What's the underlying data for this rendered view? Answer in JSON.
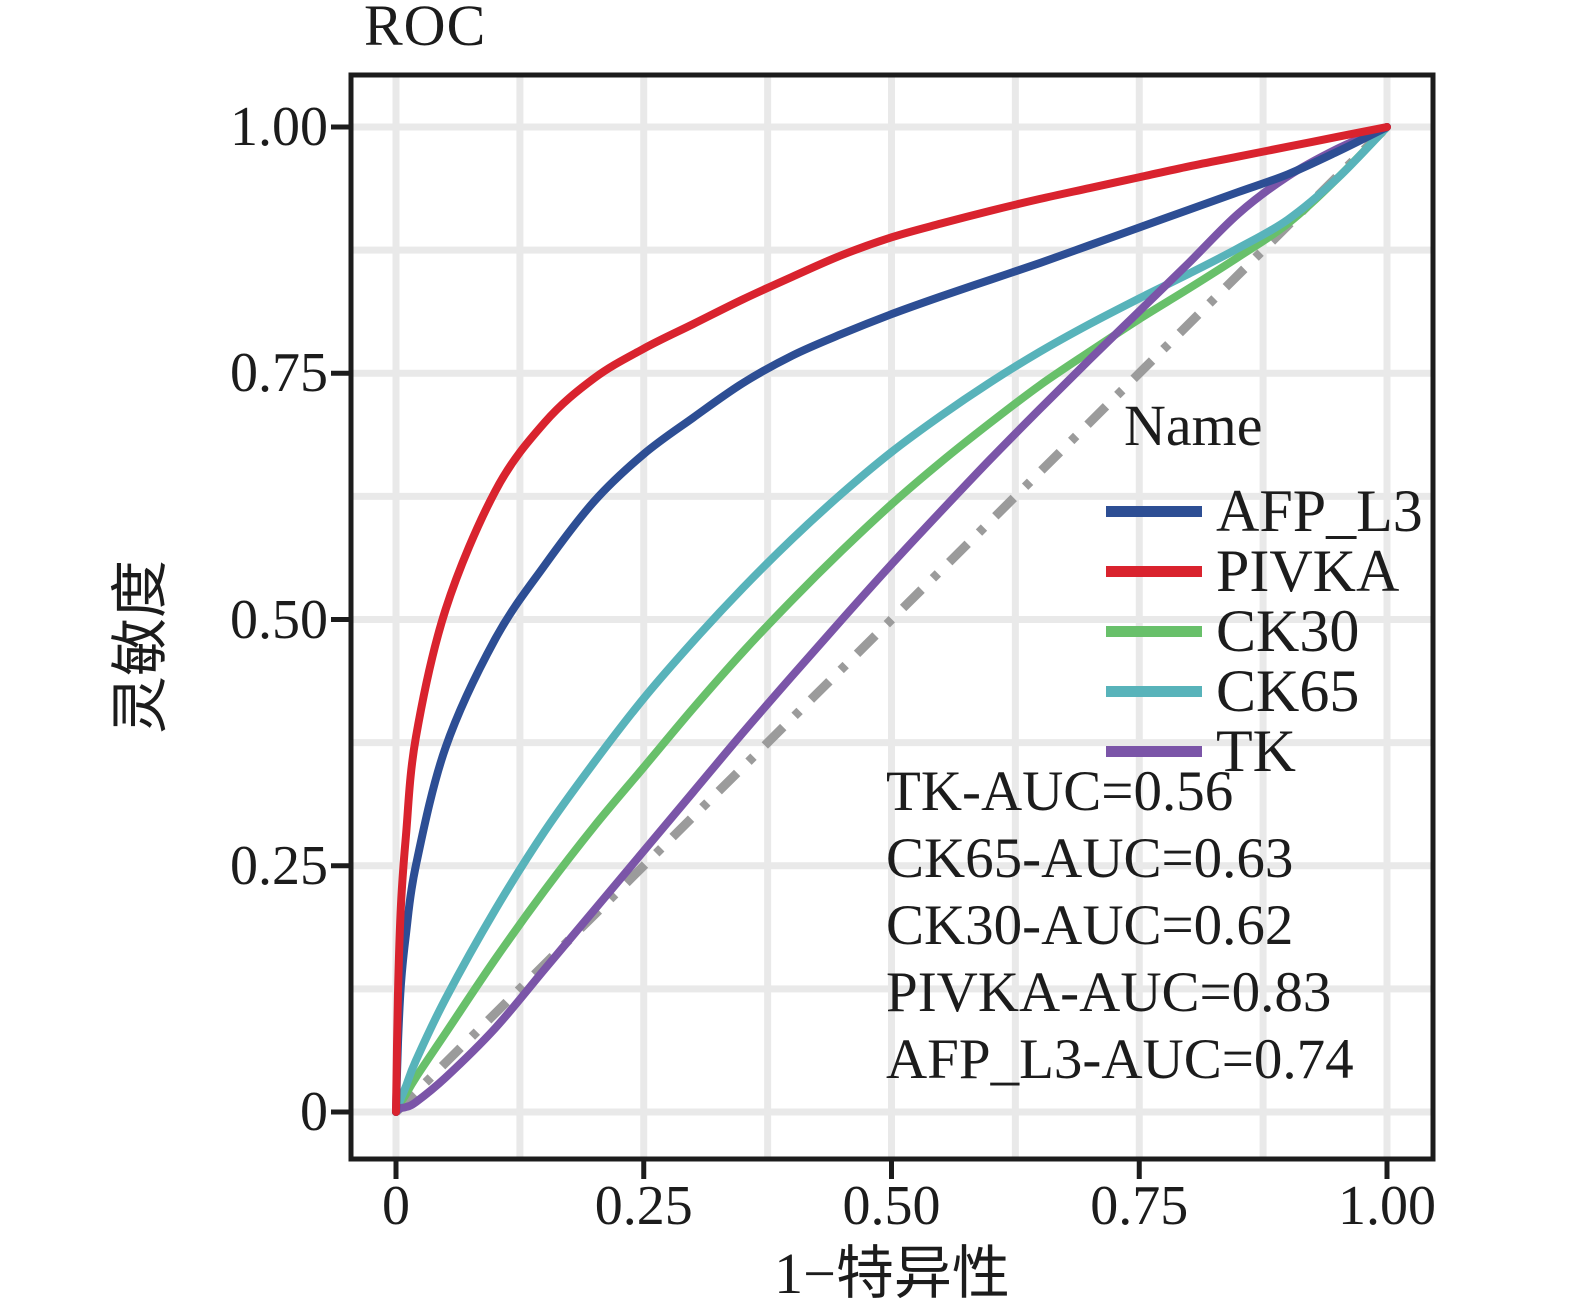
{
  "title": "ROC",
  "axes": {
    "x_label": "1−特异性",
    "y_label": "灵敏度",
    "x_ticks": [
      {
        "v": 0,
        "label": "0"
      },
      {
        "v": 0.25,
        "label": "0.25"
      },
      {
        "v": 0.5,
        "label": "0.50"
      },
      {
        "v": 0.75,
        "label": "0.75"
      },
      {
        "v": 1,
        "label": "1.00"
      }
    ],
    "y_ticks": [
      {
        "v": 0,
        "label": "0"
      },
      {
        "v": 0.25,
        "label": "0.25"
      },
      {
        "v": 0.5,
        "label": "0.50"
      },
      {
        "v": 0.75,
        "label": "0.75"
      },
      {
        "v": 1,
        "label": "1.00"
      }
    ]
  },
  "legend": {
    "title": "Name",
    "position": "inside-upper-right"
  },
  "colors": {
    "axis": "#1c1c1c",
    "grid": "#e9e9e9",
    "text": "#1c1c1c",
    "reference": "#9b9b9b"
  },
  "chart_data": {
    "type": "line",
    "title": "ROC",
    "xlabel": "1−特异性",
    "ylabel": "灵敏度",
    "xlim": [
      0,
      1
    ],
    "ylim": [
      0,
      1
    ],
    "grid": true,
    "grid_step": 0.125,
    "legend_position": "inside-right",
    "x": [
      0,
      0.002,
      0.005,
      0.01,
      0.02,
      0.05,
      0.1,
      0.15,
      0.2,
      0.25,
      0.3,
      0.35,
      0.4,
      0.45,
      0.5,
      0.55,
      0.6,
      0.65,
      0.7,
      0.75,
      0.8,
      0.85,
      0.9,
      0.95,
      1
    ],
    "series": [
      {
        "name": "AFP_L3",
        "color": "#2d4e94",
        "auc": 0.74,
        "y": [
          0,
          0.07,
          0.13,
          0.18,
          0.25,
          0.37,
          0.48,
          0.555,
          0.62,
          0.668,
          0.705,
          0.74,
          0.768,
          0.79,
          0.81,
          0.828,
          0.845,
          0.862,
          0.88,
          0.898,
          0.916,
          0.934,
          0.952,
          0.975,
          1
        ]
      },
      {
        "name": "PIVKA",
        "color": "#d9232e",
        "auc": 0.83,
        "y": [
          0,
          0.12,
          0.21,
          0.28,
          0.38,
          0.51,
          0.63,
          0.7,
          0.745,
          0.775,
          0.8,
          0.825,
          0.848,
          0.87,
          0.888,
          0.902,
          0.915,
          0.927,
          0.938,
          0.949,
          0.96,
          0.97,
          0.98,
          0.99,
          1
        ]
      },
      {
        "name": "CK30",
        "color": "#68c06a",
        "auc": 0.62,
        "y": [
          0,
          0.004,
          0.01,
          0.018,
          0.035,
          0.08,
          0.155,
          0.225,
          0.29,
          0.35,
          0.41,
          0.467,
          0.52,
          0.57,
          0.617,
          0.66,
          0.7,
          0.738,
          0.772,
          0.805,
          0.836,
          0.868,
          0.902,
          0.948,
          1
        ]
      },
      {
        "name": "CK65",
        "color": "#58b3ba",
        "auc": 0.63,
        "y": [
          0,
          0.006,
          0.014,
          0.026,
          0.052,
          0.115,
          0.205,
          0.285,
          0.355,
          0.42,
          0.478,
          0.532,
          0.582,
          0.628,
          0.67,
          0.707,
          0.741,
          0.772,
          0.8,
          0.826,
          0.851,
          0.877,
          0.906,
          0.948,
          1
        ]
      },
      {
        "name": "TK",
        "color": "#7b55a8",
        "auc": 0.56,
        "y": [
          0,
          0.002,
          0.004,
          0.005,
          0.01,
          0.035,
          0.085,
          0.145,
          0.205,
          0.265,
          0.325,
          0.385,
          0.443,
          0.5,
          0.556,
          0.61,
          0.663,
          0.714,
          0.764,
          0.813,
          0.862,
          0.912,
          0.95,
          0.978,
          1
        ]
      }
    ],
    "reference_line": {
      "name": "chance-diagonal",
      "style": "dash-dot",
      "color": "#9b9b9b",
      "from": [
        0,
        0
      ],
      "to": [
        1,
        1
      ]
    },
    "annotations": [
      "TK-AUC=0.56",
      "CK65-AUC=0.63",
      "CK30-AUC=0.62",
      "PIVKA-AUC=0.83",
      "AFP_L3-AUC=0.74"
    ]
  }
}
